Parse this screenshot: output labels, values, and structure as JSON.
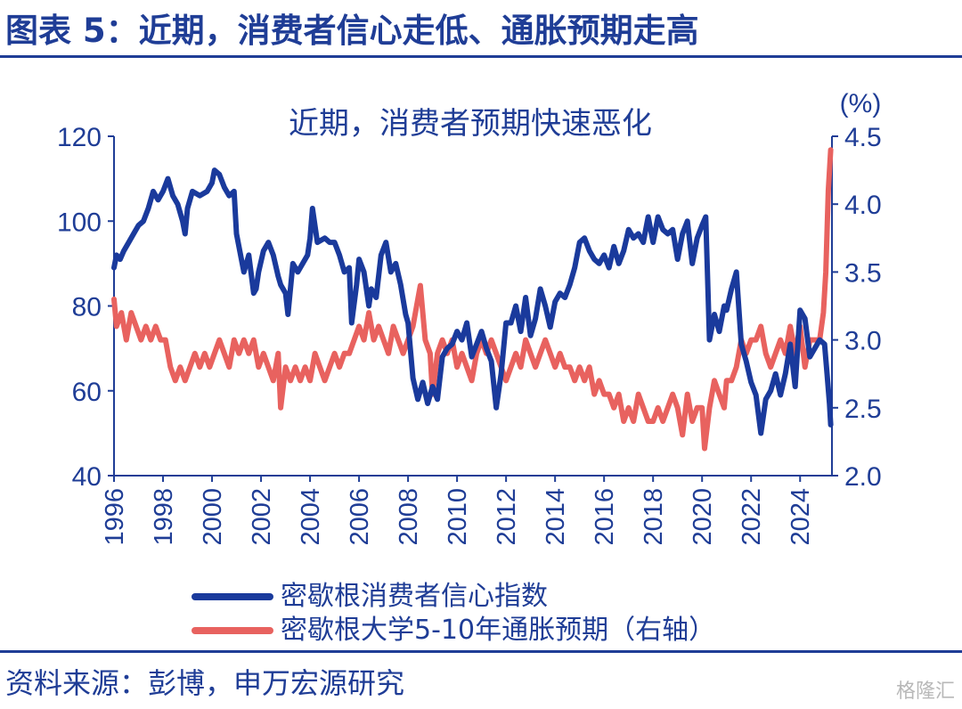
{
  "header": {
    "title": "图表 5：近期，消费者信心走低、通胀预期走高"
  },
  "footer": {
    "source": "资料来源：彭博，申万宏源研究",
    "watermark": "格隆汇"
  },
  "colors": {
    "accent": "#1f3d96",
    "series_blue": "#1a3a9c",
    "series_red": "#e8625f"
  },
  "chart_data": {
    "type": "line",
    "title": "近期，消费者预期快速恶化",
    "xlabel": "",
    "ylabel": "",
    "y2unit": "(%)",
    "x_ticks": [
      "1996",
      "1998",
      "2000",
      "2002",
      "2004",
      "2006",
      "2008",
      "2010",
      "2012",
      "2014",
      "2016",
      "2018",
      "2020",
      "2022",
      "2024"
    ],
    "xlim": [
      1996,
      2025.3
    ],
    "ylim": [
      40,
      120
    ],
    "y_ticks": [
      "40",
      "60",
      "80",
      "100",
      "120"
    ],
    "y2lim": [
      2.0,
      4.5
    ],
    "y2_ticks": [
      "2.0",
      "2.5",
      "3.0",
      "3.5",
      "4.0",
      "4.5"
    ],
    "grid": false,
    "legend_position": "bottom",
    "series": [
      {
        "name": "密歇根消费者信心指数",
        "axis": "left",
        "color": "#1a3a9c",
        "points": [
          [
            1996.0,
            89
          ],
          [
            1996.1,
            92
          ],
          [
            1996.25,
            91
          ],
          [
            1996.4,
            93
          ],
          [
            1996.6,
            95
          ],
          [
            1996.8,
            97
          ],
          [
            1997.0,
            99
          ],
          [
            1997.2,
            100
          ],
          [
            1997.4,
            103
          ],
          [
            1997.6,
            107
          ],
          [
            1997.8,
            105
          ],
          [
            1998.0,
            107
          ],
          [
            1998.2,
            110
          ],
          [
            1998.4,
            106
          ],
          [
            1998.6,
            104
          ],
          [
            1998.8,
            100
          ],
          [
            1998.9,
            97
          ],
          [
            1999.0,
            103
          ],
          [
            1999.2,
            107
          ],
          [
            1999.5,
            106
          ],
          [
            1999.8,
            107
          ],
          [
            2000.0,
            109
          ],
          [
            2000.1,
            112
          ],
          [
            2000.3,
            111
          ],
          [
            2000.5,
            108
          ],
          [
            2000.7,
            106
          ],
          [
            2000.9,
            107
          ],
          [
            2001.0,
            97
          ],
          [
            2001.2,
            91
          ],
          [
            2001.3,
            88
          ],
          [
            2001.5,
            92
          ],
          [
            2001.7,
            83
          ],
          [
            2001.8,
            84
          ],
          [
            2001.9,
            88
          ],
          [
            2002.1,
            93
          ],
          [
            2002.3,
            95
          ],
          [
            2002.5,
            92
          ],
          [
            2002.7,
            87
          ],
          [
            2002.8,
            85
          ],
          [
            2003.0,
            83
          ],
          [
            2003.1,
            78
          ],
          [
            2003.3,
            90
          ],
          [
            2003.5,
            88
          ],
          [
            2003.7,
            90
          ],
          [
            2003.9,
            92
          ],
          [
            2004.0,
            96
          ],
          [
            2004.1,
            103
          ],
          [
            2004.3,
            95
          ],
          [
            2004.6,
            96
          ],
          [
            2004.8,
            95
          ],
          [
            2005.0,
            95
          ],
          [
            2005.2,
            92
          ],
          [
            2005.4,
            88
          ],
          [
            2005.6,
            89
          ],
          [
            2005.7,
            76
          ],
          [
            2005.9,
            85
          ],
          [
            2006.0,
            91
          ],
          [
            2006.2,
            88
          ],
          [
            2006.4,
            80
          ],
          [
            2006.5,
            84
          ],
          [
            2006.7,
            82
          ],
          [
            2006.9,
            92
          ],
          [
            2007.1,
            95
          ],
          [
            2007.3,
            88
          ],
          [
            2007.5,
            90
          ],
          [
            2007.7,
            85
          ],
          [
            2007.9,
            78
          ],
          [
            2008.0,
            76
          ],
          [
            2008.2,
            63
          ],
          [
            2008.4,
            58
          ],
          [
            2008.6,
            62
          ],
          [
            2008.8,
            57
          ],
          [
            2009.0,
            61
          ],
          [
            2009.2,
            58
          ],
          [
            2009.4,
            68
          ],
          [
            2009.6,
            70
          ],
          [
            2009.8,
            71
          ],
          [
            2010.0,
            74
          ],
          [
            2010.2,
            72
          ],
          [
            2010.4,
            76
          ],
          [
            2010.6,
            68
          ],
          [
            2010.8,
            71
          ],
          [
            2011.0,
            74
          ],
          [
            2011.2,
            70
          ],
          [
            2011.4,
            67
          ],
          [
            2011.6,
            56
          ],
          [
            2011.8,
            64
          ],
          [
            2012.0,
            76
          ],
          [
            2012.2,
            76
          ],
          [
            2012.4,
            80
          ],
          [
            2012.6,
            74
          ],
          [
            2012.8,
            82
          ],
          [
            2013.0,
            73
          ],
          [
            2013.2,
            77
          ],
          [
            2013.4,
            84
          ],
          [
            2013.6,
            80
          ],
          [
            2013.8,
            75
          ],
          [
            2014.0,
            81
          ],
          [
            2014.2,
            83
          ],
          [
            2014.4,
            82
          ],
          [
            2014.6,
            85
          ],
          [
            2014.8,
            89
          ],
          [
            2015.0,
            95
          ],
          [
            2015.2,
            96
          ],
          [
            2015.4,
            93
          ],
          [
            2015.6,
            91
          ],
          [
            2015.8,
            90
          ],
          [
            2016.0,
            92
          ],
          [
            2016.2,
            89
          ],
          [
            2016.4,
            94
          ],
          [
            2016.6,
            90
          ],
          [
            2016.8,
            93
          ],
          [
            2017.0,
            98
          ],
          [
            2017.2,
            96
          ],
          [
            2017.4,
            97
          ],
          [
            2017.6,
            95
          ],
          [
            2017.8,
            101
          ],
          [
            2018.0,
            95
          ],
          [
            2018.2,
            101
          ],
          [
            2018.4,
            98
          ],
          [
            2018.6,
            97
          ],
          [
            2018.8,
            98
          ],
          [
            2019.0,
            91
          ],
          [
            2019.2,
            97
          ],
          [
            2019.4,
            100
          ],
          [
            2019.6,
            90
          ],
          [
            2019.8,
            96
          ],
          [
            2020.0,
            99
          ],
          [
            2020.15,
            101
          ],
          [
            2020.3,
            72
          ],
          [
            2020.5,
            78
          ],
          [
            2020.7,
            74
          ],
          [
            2020.9,
            80
          ],
          [
            2021.0,
            79
          ],
          [
            2021.2,
            84
          ],
          [
            2021.4,
            88
          ],
          [
            2021.6,
            71
          ],
          [
            2021.8,
            67
          ],
          [
            2022.0,
            62
          ],
          [
            2022.2,
            59
          ],
          [
            2022.4,
            50
          ],
          [
            2022.6,
            58
          ],
          [
            2022.8,
            60
          ],
          [
            2023.0,
            64
          ],
          [
            2023.2,
            59
          ],
          [
            2023.4,
            64
          ],
          [
            2023.6,
            71
          ],
          [
            2023.8,
            61
          ],
          [
            2024.0,
            79
          ],
          [
            2024.2,
            77
          ],
          [
            2024.4,
            68
          ],
          [
            2024.6,
            70
          ],
          [
            2024.8,
            72
          ],
          [
            2025.0,
            71
          ],
          [
            2025.1,
            64
          ],
          [
            2025.2,
            57
          ],
          [
            2025.25,
            52
          ]
        ]
      },
      {
        "name": "密歇根大学5-10年通胀预期（右轴）",
        "axis": "right",
        "color": "#e8625f",
        "points": [
          [
            1996.0,
            3.3
          ],
          [
            1996.1,
            3.1
          ],
          [
            1996.3,
            3.2
          ],
          [
            1996.5,
            3.0
          ],
          [
            1996.7,
            3.2
          ],
          [
            1996.9,
            3.1
          ],
          [
            1997.1,
            3.0
          ],
          [
            1997.3,
            3.1
          ],
          [
            1997.5,
            3.0
          ],
          [
            1997.7,
            3.1
          ],
          [
            1997.9,
            3.0
          ],
          [
            1998.1,
            3.0
          ],
          [
            1998.3,
            2.8
          ],
          [
            1998.5,
            2.7
          ],
          [
            1998.7,
            2.8
          ],
          [
            1998.9,
            2.7
          ],
          [
            1999.1,
            2.8
          ],
          [
            1999.3,
            2.9
          ],
          [
            1999.5,
            2.8
          ],
          [
            1999.7,
            2.9
          ],
          [
            1999.9,
            2.8
          ],
          [
            2000.1,
            2.9
          ],
          [
            2000.3,
            3.0
          ],
          [
            2000.5,
            2.9
          ],
          [
            2000.7,
            2.8
          ],
          [
            2000.9,
            3.0
          ],
          [
            2001.1,
            2.9
          ],
          [
            2001.3,
            3.0
          ],
          [
            2001.5,
            2.9
          ],
          [
            2001.7,
            3.0
          ],
          [
            2001.9,
            2.8
          ],
          [
            2002.1,
            2.9
          ],
          [
            2002.3,
            2.8
          ],
          [
            2002.5,
            2.7
          ],
          [
            2002.7,
            2.9
          ],
          [
            2002.8,
            2.5
          ],
          [
            2003.0,
            2.8
          ],
          [
            2003.2,
            2.7
          ],
          [
            2003.4,
            2.8
          ],
          [
            2003.6,
            2.7
          ],
          [
            2003.8,
            2.8
          ],
          [
            2004.0,
            2.7
          ],
          [
            2004.2,
            2.9
          ],
          [
            2004.4,
            2.8
          ],
          [
            2004.6,
            2.7
          ],
          [
            2004.8,
            2.8
          ],
          [
            2005.0,
            2.9
          ],
          [
            2005.2,
            2.8
          ],
          [
            2005.4,
            2.9
          ],
          [
            2005.6,
            2.9
          ],
          [
            2005.8,
            3.0
          ],
          [
            2006.0,
            3.1
          ],
          [
            2006.2,
            3.0
          ],
          [
            2006.4,
            3.2
          ],
          [
            2006.6,
            3.0
          ],
          [
            2006.8,
            3.1
          ],
          [
            2007.0,
            3.0
          ],
          [
            2007.2,
            2.9
          ],
          [
            2007.4,
            3.1
          ],
          [
            2007.6,
            3.0
          ],
          [
            2007.8,
            2.9
          ],
          [
            2008.0,
            3.0
          ],
          [
            2008.2,
            3.1
          ],
          [
            2008.4,
            3.3
          ],
          [
            2008.5,
            3.4
          ],
          [
            2008.7,
            3.0
          ],
          [
            2008.9,
            2.9
          ],
          [
            2009.0,
            2.6
          ],
          [
            2009.2,
            2.9
          ],
          [
            2009.4,
            3.0
          ],
          [
            2009.6,
            2.9
          ],
          [
            2009.8,
            3.0
          ],
          [
            2010.0,
            2.8
          ],
          [
            2010.2,
            2.9
          ],
          [
            2010.4,
            2.8
          ],
          [
            2010.6,
            2.7
          ],
          [
            2010.8,
            2.9
          ],
          [
            2011.0,
            3.0
          ],
          [
            2011.2,
            2.9
          ],
          [
            2011.4,
            3.0
          ],
          [
            2011.6,
            2.9
          ],
          [
            2011.8,
            2.8
          ],
          [
            2012.0,
            2.7
          ],
          [
            2012.2,
            2.8
          ],
          [
            2012.4,
            2.9
          ],
          [
            2012.6,
            2.8
          ],
          [
            2012.8,
            3.0
          ],
          [
            2013.0,
            2.9
          ],
          [
            2013.2,
            2.8
          ],
          [
            2013.4,
            2.9
          ],
          [
            2013.6,
            3.0
          ],
          [
            2013.8,
            2.9
          ],
          [
            2014.0,
            2.8
          ],
          [
            2014.2,
            2.9
          ],
          [
            2014.4,
            2.8
          ],
          [
            2014.6,
            2.8
          ],
          [
            2014.8,
            2.7
          ],
          [
            2015.0,
            2.8
          ],
          [
            2015.2,
            2.7
          ],
          [
            2015.4,
            2.8
          ],
          [
            2015.6,
            2.6
          ],
          [
            2015.8,
            2.7
          ],
          [
            2016.0,
            2.6
          ],
          [
            2016.2,
            2.6
          ],
          [
            2016.4,
            2.5
          ],
          [
            2016.6,
            2.6
          ],
          [
            2016.8,
            2.4
          ],
          [
            2017.0,
            2.5
          ],
          [
            2017.2,
            2.4
          ],
          [
            2017.4,
            2.6
          ],
          [
            2017.6,
            2.5
          ],
          [
            2017.8,
            2.4
          ],
          [
            2018.0,
            2.4
          ],
          [
            2018.2,
            2.5
          ],
          [
            2018.4,
            2.4
          ],
          [
            2018.6,
            2.5
          ],
          [
            2018.8,
            2.6
          ],
          [
            2019.0,
            2.5
          ],
          [
            2019.2,
            2.3
          ],
          [
            2019.4,
            2.6
          ],
          [
            2019.6,
            2.4
          ],
          [
            2019.8,
            2.5
          ],
          [
            2020.0,
            2.5
          ],
          [
            2020.1,
            2.2
          ],
          [
            2020.3,
            2.5
          ],
          [
            2020.5,
            2.7
          ],
          [
            2020.7,
            2.6
          ],
          [
            2020.9,
            2.5
          ],
          [
            2021.0,
            2.7
          ],
          [
            2021.2,
            2.7
          ],
          [
            2021.4,
            2.8
          ],
          [
            2021.6,
            3.0
          ],
          [
            2021.8,
            2.9
          ],
          [
            2022.0,
            3.0
          ],
          [
            2022.2,
            3.0
          ],
          [
            2022.4,
            3.1
          ],
          [
            2022.6,
            2.9
          ],
          [
            2022.8,
            2.8
          ],
          [
            2023.0,
            2.9
          ],
          [
            2023.2,
            3.0
          ],
          [
            2023.4,
            2.9
          ],
          [
            2023.6,
            3.1
          ],
          [
            2023.8,
            2.9
          ],
          [
            2024.0,
            3.1
          ],
          [
            2024.2,
            2.8
          ],
          [
            2024.4,
            3.0
          ],
          [
            2024.6,
            3.0
          ],
          [
            2024.8,
            3.0
          ],
          [
            2024.95,
            3.2
          ],
          [
            2025.05,
            3.5
          ],
          [
            2025.15,
            4.1
          ],
          [
            2025.25,
            4.4
          ]
        ]
      }
    ]
  }
}
